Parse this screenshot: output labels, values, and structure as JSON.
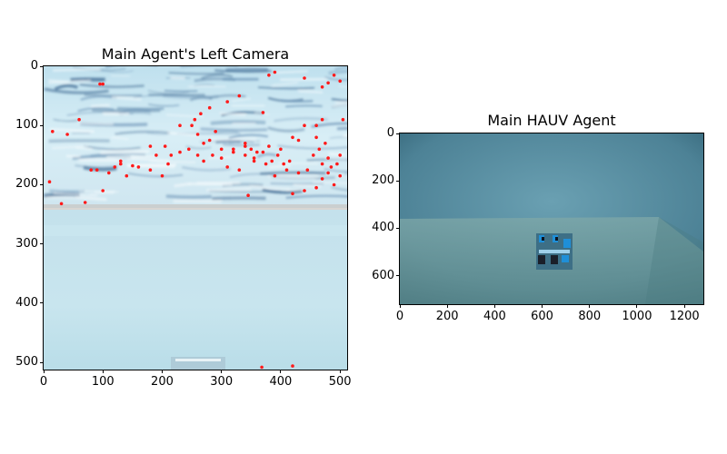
{
  "panels": {
    "left": {
      "title": "Main Agent's Left Camera",
      "x_ticks": [
        "0",
        "100",
        "200",
        "300",
        "400",
        "500"
      ],
      "y_ticks": [
        "0",
        "100",
        "200",
        "300",
        "400",
        "500"
      ],
      "x_range": [
        0,
        512
      ],
      "y_range": [
        0,
        512
      ],
      "x_tick_values": [
        0,
        100,
        200,
        300,
        400,
        500
      ],
      "y_tick_values": [
        0,
        100,
        200,
        300,
        400,
        500
      ],
      "keypoint_color": "#ff1a1a"
    },
    "right": {
      "title": "Main HAUV Agent",
      "x_ticks": [
        "0",
        "200",
        "400",
        "600",
        "800",
        "1000",
        "1200"
      ],
      "y_ticks": [
        "0",
        "200",
        "400",
        "600"
      ],
      "x_range": [
        0,
        1280
      ],
      "y_range": [
        0,
        720
      ],
      "x_tick_values": [
        0,
        200,
        400,
        600,
        800,
        1000,
        1200
      ],
      "y_tick_values": [
        0,
        200,
        400,
        600
      ]
    }
  },
  "keypoints": [
    [
      345,
      218
    ],
    [
      95,
      30
    ],
    [
      100,
      30
    ],
    [
      180,
      135
    ],
    [
      205,
      135
    ],
    [
      215,
      150
    ],
    [
      250,
      100
    ],
    [
      270,
      130
    ],
    [
      300,
      140
    ],
    [
      320,
      140
    ],
    [
      350,
      140
    ],
    [
      380,
      135
    ],
    [
      400,
      140
    ],
    [
      430,
      125
    ],
    [
      460,
      120
    ],
    [
      470,
      165
    ],
    [
      480,
      155
    ],
    [
      500,
      150
    ],
    [
      310,
      60
    ],
    [
      330,
      50
    ],
    [
      370,
      78
    ],
    [
      390,
      10
    ],
    [
      380,
      15
    ],
    [
      440,
      20
    ],
    [
      470,
      35
    ],
    [
      480,
      28
    ],
    [
      490,
      15
    ],
    [
      500,
      25
    ],
    [
      505,
      90
    ],
    [
      470,
      90
    ],
    [
      460,
      100
    ],
    [
      440,
      100
    ],
    [
      420,
      120
    ],
    [
      15,
      110
    ],
    [
      40,
      115
    ],
    [
      60,
      90
    ],
    [
      10,
      195
    ],
    [
      30,
      232
    ],
    [
      70,
      230
    ],
    [
      80,
      175
    ],
    [
      90,
      175
    ],
    [
      100,
      210
    ],
    [
      110,
      180
    ],
    [
      130,
      160
    ],
    [
      140,
      185
    ],
    [
      160,
      170
    ],
    [
      180,
      175
    ],
    [
      190,
      150
    ],
    [
      230,
      100
    ],
    [
      255,
      90
    ],
    [
      265,
      80
    ],
    [
      280,
      70
    ],
    [
      290,
      110
    ],
    [
      300,
      155
    ],
    [
      310,
      170
    ],
    [
      320,
      145
    ],
    [
      340,
      130
    ],
    [
      355,
      155
    ],
    [
      375,
      165
    ],
    [
      390,
      185
    ],
    [
      410,
      175
    ],
    [
      420,
      215
    ],
    [
      440,
      210
    ],
    [
      460,
      205
    ],
    [
      470,
      190
    ],
    [
      480,
      180
    ],
    [
      490,
      200
    ],
    [
      500,
      185
    ],
    [
      340,
      135
    ],
    [
      360,
      145
    ],
    [
      280,
      125
    ],
    [
      260,
      115
    ],
    [
      245,
      140
    ],
    [
      230,
      145
    ],
    [
      210,
      165
    ],
    [
      120,
      170
    ],
    [
      130,
      165
    ],
    [
      150,
      168
    ],
    [
      200,
      185
    ],
    [
      260,
      150
    ],
    [
      270,
      160
    ],
    [
      285,
      150
    ],
    [
      330,
      175
    ],
    [
      340,
      150
    ],
    [
      355,
      160
    ],
    [
      370,
      145
    ],
    [
      385,
      160
    ],
    [
      395,
      150
    ],
    [
      405,
      165
    ],
    [
      415,
      160
    ],
    [
      430,
      180
    ],
    [
      445,
      175
    ],
    [
      455,
      150
    ],
    [
      465,
      140
    ],
    [
      475,
      130
    ],
    [
      485,
      170
    ],
    [
      495,
      165
    ],
    [
      368,
      508
    ],
    [
      420,
      506
    ]
  ]
}
